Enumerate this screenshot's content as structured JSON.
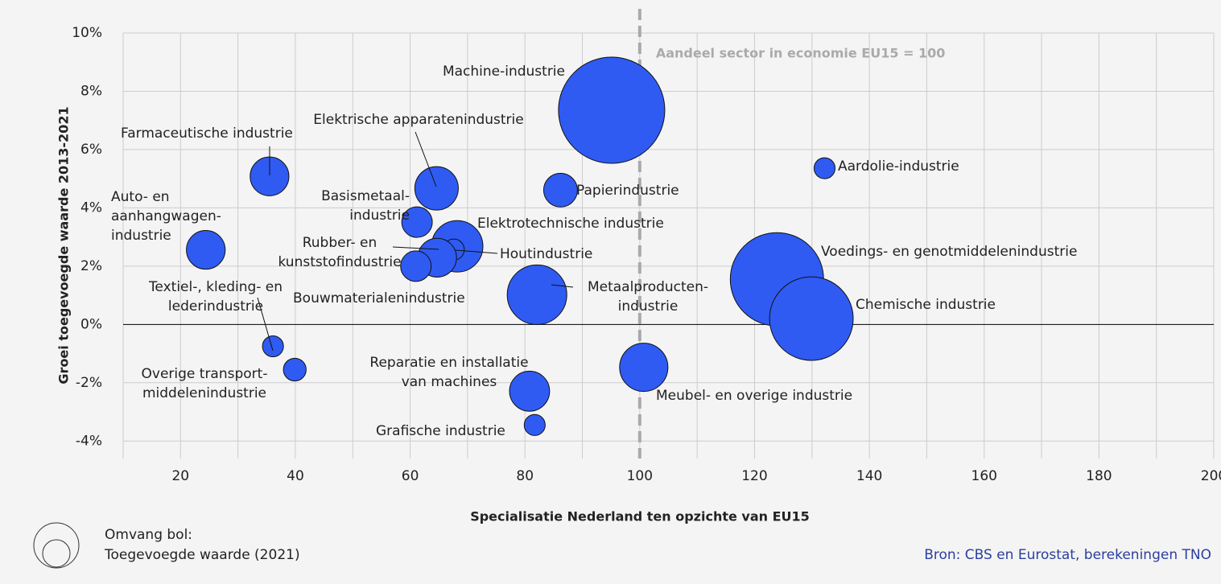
{
  "chart_data": {
    "type": "bubble",
    "xlabel": "Specialisatie Nederland ten opzichte van EU15",
    "ylabel": "Groei toegevoegde waarde 2013-2021",
    "xlim": [
      10,
      200
    ],
    "ylim": [
      -4.6,
      10
    ],
    "xticks": [
      20,
      40,
      60,
      80,
      100,
      120,
      140,
      160,
      180,
      200
    ],
    "xminorticks": [
      10,
      30,
      50,
      70,
      90,
      110,
      130,
      150,
      170,
      190
    ],
    "yticks": [
      {
        "value": -4,
        "label": "-4%"
      },
      {
        "value": -2,
        "label": "-2%"
      },
      {
        "value": 0,
        "label": "0%"
      },
      {
        "value": 2,
        "label": "2%"
      },
      {
        "value": 4,
        "label": "4%"
      },
      {
        "value": 6,
        "label": "6%"
      },
      {
        "value": 8,
        "label": "8%"
      },
      {
        "value": 10,
        "label": "10%"
      }
    ],
    "grid": true,
    "color": "#2f5bf2",
    "reference": {
      "x": 100,
      "label": "Aandeel sector in economie EU15 = 100"
    },
    "legend": {
      "title": "Omvang bol:",
      "text": "Toegevoegde waarde (2021)"
    },
    "source": "Bron: CBS en Eurostat, berekeningen TNO",
    "points": [
      {
        "label": [
          "Machine-industrie"
        ],
        "x": 95.1,
        "y": 7.35,
        "size": 436
      },
      {
        "label": [
          "Voedings- en genotmiddelenindustrie"
        ],
        "x": 123.9,
        "y": 1.55,
        "size": 336
      },
      {
        "label": [
          "Chemische industrie"
        ],
        "x": 129.9,
        "y": 0.2,
        "size": 270
      },
      {
        "label": [
          "Metaalproducten-",
          "industrie"
        ],
        "x": 82.1,
        "y": 1.02,
        "size": 137
      },
      {
        "label": [
          "Meubel- en overige industrie"
        ],
        "x": 100.7,
        "y": -1.47,
        "size": 90
      },
      {
        "label": [
          "Elektrotechnische industrie"
        ],
        "x": 68.2,
        "y": 2.68,
        "size": 102
      },
      {
        "label": [
          "Houtindustrie"
        ],
        "x": 67.6,
        "y": 2.57,
        "size": 17
      },
      {
        "label": [
          "Rubber- en",
          "kunststofindustrie"
        ],
        "x": 64.7,
        "y": 2.29,
        "size": 58
      },
      {
        "label": [
          "Bouwmaterialenindustrie"
        ],
        "x": 61,
        "y": 2.0,
        "size": 36
      },
      {
        "label": [
          "Basismetaal-",
          "industrie"
        ],
        "x": 61.2,
        "y": 3.51,
        "size": 36
      },
      {
        "label": [
          "Elektrische apparatenindustrie"
        ],
        "x": 64.6,
        "y": 4.67,
        "size": 73
      },
      {
        "label": [
          "Farmaceutische industrie"
        ],
        "x": 35.5,
        "y": 5.08,
        "size": 58
      },
      {
        "label": [
          "Papierindustrie"
        ],
        "x": 86.2,
        "y": 4.61,
        "size": 44
      },
      {
        "label": [
          "Aardolie-industrie"
        ],
        "x": 132.2,
        "y": 5.36,
        "size": 17
      },
      {
        "label": [
          "Auto- en",
          "aanhangwagen-",
          "industrie"
        ],
        "x": 24.4,
        "y": 2.56,
        "size": 58
      },
      {
        "label": [
          "Textiel-, kleding- en",
          "lederindustrie"
        ],
        "x": 36.1,
        "y": -0.75,
        "size": 17
      },
      {
        "label": [
          "Overige transport-",
          "middelenindustrie"
        ],
        "x": 39.9,
        "y": -1.55,
        "size": 20
      },
      {
        "label": [
          "Reparatie en installatie",
          "van machines"
        ],
        "x": 80.8,
        "y": -2.29,
        "size": 62
      },
      {
        "label": [
          "Grafische industrie"
        ],
        "x": 81.7,
        "y": -3.45,
        "size": 17
      }
    ]
  }
}
